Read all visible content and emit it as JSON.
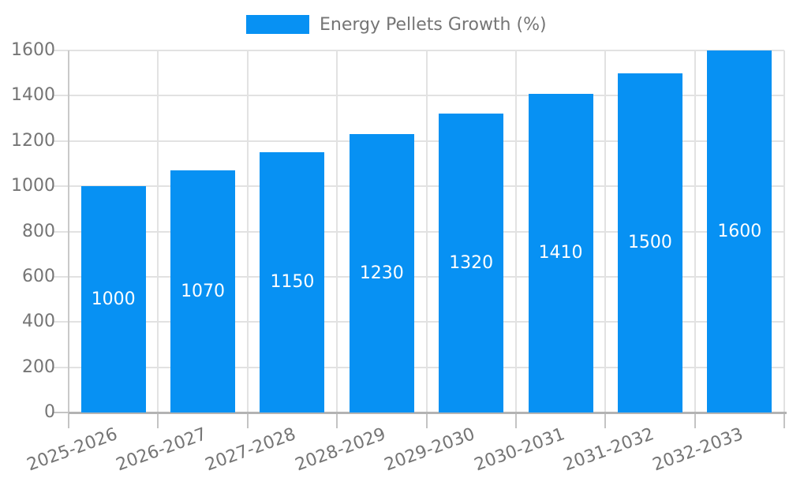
{
  "legend": {
    "label": "Energy Pellets Growth (%)"
  },
  "chart_data": {
    "type": "bar",
    "title": "Energy Pellets Growth (%)",
    "categories": [
      "2025-2026",
      "2026-2027",
      "2027-2028",
      "2028-2029",
      "2029-2030",
      "2030-2031",
      "2031-2032",
      "2032-2033"
    ],
    "values": [
      1000,
      1070,
      1150,
      1230,
      1320,
      1410,
      1500,
      1600
    ],
    "bar_labels": [
      "1000",
      "1070",
      "1150",
      "1230",
      "1320",
      "1410",
      "1500",
      "1600"
    ],
    "xlabel": "",
    "ylabel": "",
    "ylim": [
      0,
      1600
    ],
    "yticks": [
      0,
      200,
      400,
      600,
      800,
      1000,
      1200,
      1400,
      1600
    ],
    "grid": true,
    "legend_position": "top",
    "colors": {
      "bar": "#0791f3",
      "bar_label": "#ffffff",
      "axis_text": "#757575",
      "grid": "#e2e2e2",
      "axis_line": "#c9c9c9",
      "baseline": "#b3b3b3",
      "tick": "#c4c4c4"
    }
  }
}
